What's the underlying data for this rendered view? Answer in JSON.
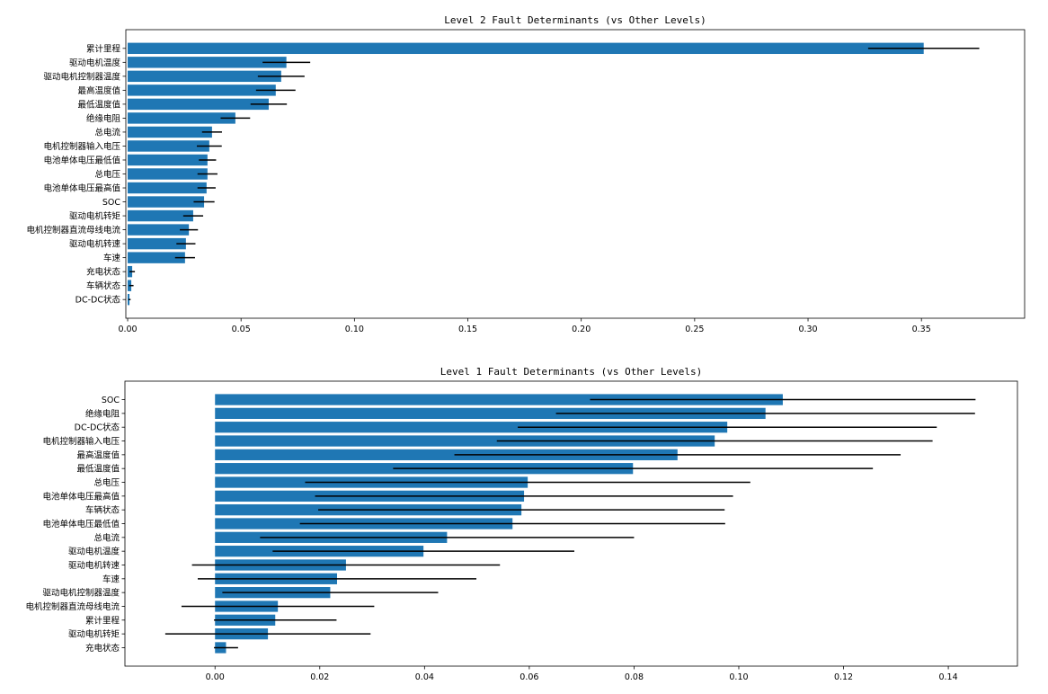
{
  "chart_data": [
    {
      "type": "bar",
      "orientation": "horizontal",
      "title": "Level 2 Fault Determinants (vs Other Levels)",
      "xlabel": "",
      "xlim": [
        -0.0008,
        0.3955
      ],
      "xticks": [
        "0.00",
        "0.05",
        "0.10",
        "0.15",
        "0.20",
        "0.25",
        "0.30",
        "0.35"
      ],
      "grid": false,
      "bar_color": "#1f77b4",
      "error_color": "#000000",
      "categories": [
        "累计里程",
        "驱动电机温度",
        "驱动电机控制器温度",
        "最高温度值",
        "最低温度值",
        "绝缘电阻",
        "总电流",
        "电机控制器输入电压",
        "电池单体电压最低值",
        "总电压",
        "电池单体电压最高值",
        "SOC",
        "驱动电机转矩",
        "电机控制器直流母线电流",
        "驱动电机转速",
        "车速",
        "充电状态",
        "车辆状态",
        "DC-DC状态"
      ],
      "values": [
        0.351,
        0.07,
        0.0677,
        0.0653,
        0.0622,
        0.0475,
        0.0372,
        0.036,
        0.0352,
        0.0352,
        0.0348,
        0.0337,
        0.0289,
        0.027,
        0.0257,
        0.0253,
        0.002,
        0.0016,
        0.0008
      ],
      "errors": [
        0.0245,
        0.0105,
        0.0103,
        0.0087,
        0.008,
        0.0065,
        0.0044,
        0.0055,
        0.0038,
        0.0044,
        0.004,
        0.0046,
        0.0044,
        0.004,
        0.0042,
        0.0044,
        0.0012,
        0.001,
        0.0005
      ]
    },
    {
      "type": "bar",
      "orientation": "horizontal",
      "title": "Level 1 Fault Determinants (vs Other Levels)",
      "xlabel": "",
      "xlim": [
        -0.0172,
        0.1532
      ],
      "xticks": [
        "0.00",
        "0.02",
        "0.04",
        "0.06",
        "0.08",
        "0.10",
        "0.12",
        "0.14"
      ],
      "grid": false,
      "bar_color": "#1f77b4",
      "error_color": "#000000",
      "categories": [
        "SOC",
        "绝缘电阻",
        "DC-DC状态",
        "电机控制器输入电压",
        "最高温度值",
        "最低温度值",
        "总电压",
        "电池单体电压最高值",
        "车辆状态",
        "电池单体电压最低值",
        "总电流",
        "驱动电机温度",
        "驱动电机转速",
        "车速",
        "驱动电机控制器温度",
        "电机控制器直流母线电流",
        "累计里程",
        "驱动电机转矩",
        "充电状态"
      ],
      "values": [
        0.1084,
        0.1051,
        0.0978,
        0.0954,
        0.0883,
        0.0798,
        0.0597,
        0.059,
        0.0585,
        0.0568,
        0.0443,
        0.0398,
        0.025,
        0.0233,
        0.022,
        0.012,
        0.0115,
        0.0101,
        0.0021
      ],
      "errors": [
        0.0368,
        0.04,
        0.04,
        0.0416,
        0.0426,
        0.0458,
        0.0425,
        0.0399,
        0.0388,
        0.0406,
        0.0357,
        0.0288,
        0.0294,
        0.0266,
        0.0206,
        0.0184,
        0.0117,
        0.0196,
        0.0023
      ]
    }
  ]
}
